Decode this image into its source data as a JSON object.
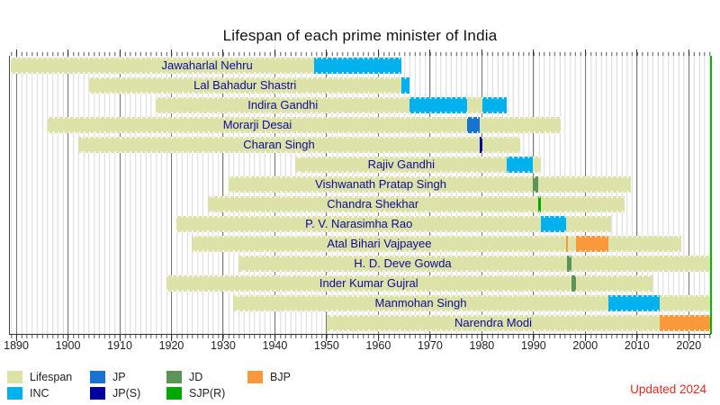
{
  "title": "Lifespan of each prime minister of India",
  "updated_note": "Updated 2024",
  "colors": {
    "lifespan": "#dce2a8",
    "INC": "#00b1ed",
    "JP": "#1873cf",
    "JP(S)": "#0000a0",
    "JD": "#5c9455",
    "SJP(R)": "#00a800",
    "BJP": "#f9993c",
    "now_line": "#00b800",
    "name_text": "#0d0d96",
    "updated_text": "#e22a22"
  },
  "legend": {
    "items": [
      {
        "label": "Lifespan",
        "key": "lifespan"
      },
      {
        "label": "INC",
        "key": "INC"
      },
      {
        "label": "JP",
        "key": "JP"
      },
      {
        "label": "JP(S)",
        "key": "JP(S)"
      },
      {
        "label": "JD",
        "key": "JD"
      },
      {
        "label": "SJP(R)",
        "key": "SJP(R)"
      },
      {
        "label": "BJP",
        "key": "BJP"
      }
    ]
  },
  "chart_data": {
    "type": "timeline",
    "x_axis": {
      "min": 1888.6,
      "max": 2024.3,
      "tick_years": [
        1890,
        1900,
        1910,
        1920,
        1930,
        1940,
        1950,
        1960,
        1970,
        1980,
        1990,
        2000,
        2010,
        2020
      ],
      "tick_labels": [
        "1890",
        "1900",
        "1910",
        "1920",
        "1930",
        "1940",
        "1950",
        "1960",
        "1970",
        "1980",
        "1990",
        "2000",
        "2010",
        "2020"
      ]
    },
    "now_line_year": 2024.3,
    "rows": [
      {
        "name": "Jawaharlal Nehru",
        "born": 1889,
        "died": 1964.41,
        "terms": [
          {
            "start": 1947.62,
            "end": 1964.41,
            "party": "INC"
          }
        ],
        "label_center_year": 1926.9
      },
      {
        "name": "Lal Bahadur Shastri",
        "born": 1904,
        "died": 1966.03,
        "terms": [
          {
            "start": 1964.44,
            "end": 1966.03,
            "party": "INC"
          }
        ]
      },
      {
        "name": "Indira Gandhi",
        "born": 1917,
        "died": 1984.83,
        "terms": [
          {
            "start": 1966.07,
            "end": 1977.23,
            "party": "INC"
          },
          {
            "start": 1980.04,
            "end": 1984.83,
            "party": "INC"
          }
        ]
      },
      {
        "name": "Morarji Desai",
        "born": 1896,
        "died": 1995.27,
        "terms": [
          {
            "start": 1977.23,
            "end": 1979.57,
            "party": "JP"
          }
        ]
      },
      {
        "name": "Charan Singh",
        "born": 1902,
        "died": 1987.41,
        "terms": [
          {
            "start": 1979.57,
            "end": 1980.04,
            "party": "JP(S)"
          }
        ]
      },
      {
        "name": "Rajiv Gandhi",
        "born": 1944,
        "died": 1991.38,
        "terms": [
          {
            "start": 1984.83,
            "end": 1989.92,
            "party": "INC"
          }
        ]
      },
      {
        "name": "Vishwanath Pratap Singh",
        "born": 1931,
        "died": 2008.9,
        "terms": [
          {
            "start": 1989.92,
            "end": 1990.86,
            "party": "JD"
          }
        ]
      },
      {
        "name": "Chandra Shekhar",
        "born": 1927,
        "died": 2007.52,
        "terms": [
          {
            "start": 1990.86,
            "end": 1991.47,
            "party": "SJP(R)"
          }
        ]
      },
      {
        "name": "P. V. Narasimha Rao",
        "born": 1921,
        "died": 2004.98,
        "terms": [
          {
            "start": 1991.47,
            "end": 1996.37,
            "party": "INC"
          }
        ]
      },
      {
        "name": "Atal Bihari Vajpayee",
        "born": 1924,
        "died": 2018.62,
        "terms": [
          {
            "start": 1996.37,
            "end": 1996.42,
            "party": "BJP"
          },
          {
            "start": 1998.21,
            "end": 2004.39,
            "party": "BJP"
          }
        ]
      },
      {
        "name": "H. D. Deve Gowda",
        "born": 1933,
        "died": null,
        "terms": [
          {
            "start": 1996.42,
            "end": 1997.3,
            "party": "JD"
          }
        ]
      },
      {
        "name": "Inder Kumar Gujral",
        "born": 1919,
        "died": 2012.91,
        "terms": [
          {
            "start": 1997.3,
            "end": 1998.21,
            "party": "JD"
          }
        ]
      },
      {
        "name": "Manmohan Singh",
        "born": 1932,
        "died": null,
        "terms": [
          {
            "start": 2004.39,
            "end": 2014.4,
            "party": "INC"
          }
        ]
      },
      {
        "name": "Narendra Modi",
        "born": 1950,
        "died": null,
        "terms": [
          {
            "start": 2014.4,
            "end": 2024.3,
            "party": "BJP"
          }
        ]
      }
    ]
  }
}
